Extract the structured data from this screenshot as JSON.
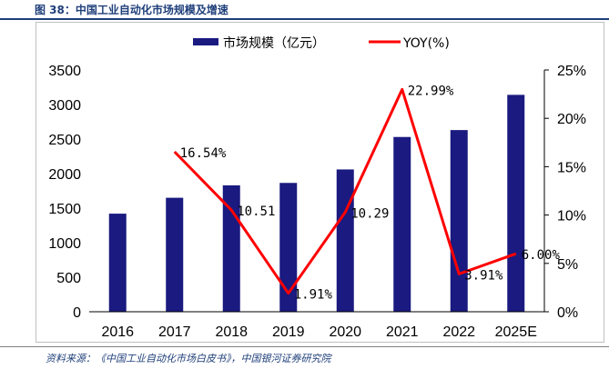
{
  "figure_title": "图 38：中国工业自动化市场规模及增速",
  "source_note": "资料来源：《中国工业自动化市场白皮书》，中国银河证券研究院",
  "colors": {
    "bar": "#1a1a80",
    "line": "#ff0000",
    "title": "#1f3f7a"
  },
  "chart_data": {
    "type": "bar",
    "categories": [
      "2016",
      "2017",
      "2018",
      "2019",
      "2020",
      "2021",
      "2022",
      "2025E"
    ],
    "series": [
      {
        "name": "市场规模（亿元）",
        "type": "bar",
        "axis": "left",
        "values": [
          1420,
          1650,
          1830,
          1865,
          2060,
          2530,
          2630,
          3140
        ]
      },
      {
        "name": "YOY(%)",
        "type": "line",
        "axis": "right",
        "values": [
          null,
          16.54,
          10.51,
          1.91,
          10.29,
          22.99,
          3.91,
          6.0
        ],
        "labels": [
          null,
          "16.54%",
          "10.51",
          "1.91%",
          "10.29",
          "22.99%",
          "3.91%",
          "6.00%"
        ]
      }
    ],
    "left_axis": {
      "ylim": [
        0,
        3500
      ],
      "ticks": [
        "0",
        "500",
        "1000",
        "1500",
        "2000",
        "2500",
        "3000",
        "3500"
      ]
    },
    "right_axis": {
      "ylim": [
        0,
        25
      ],
      "ticks": [
        "0%",
        "5%",
        "10%",
        "15%",
        "20%",
        "25%"
      ]
    },
    "grid": false,
    "legend_position": "top"
  }
}
